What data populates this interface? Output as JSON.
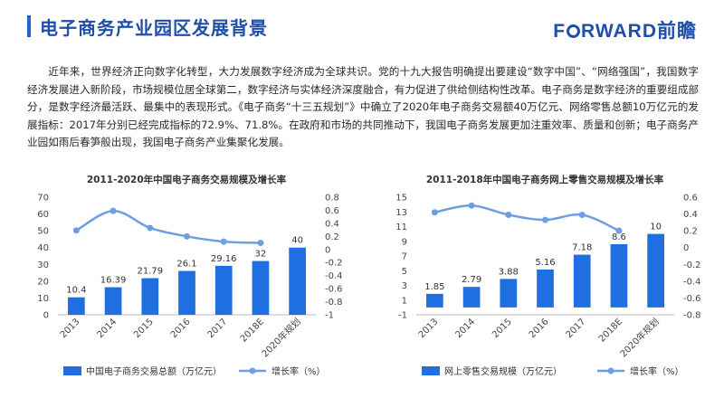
{
  "page": {
    "title": "电子商务产业园区发展背景",
    "logo": {
      "part1": "F",
      "part2": "RWARD前瞻"
    },
    "intro": "近年来，世界经济正向数字化转型，大力发展数字经济成为全球共识。党的十九大报告明确提出要建设“数字中国”、“网络强国”，我国数字经济发展进入新阶段，市场规模位居全球第二，数字经济与实体经济深度融合，有力促进了供给侧结构性改革。电子商务是数字经济的重要组成部分，是数字经济最活跃、最集中的表现形式。《电子商务“十三五规划”》中确立了2020年电子商务交易额40万亿元、网络零售总额10万亿元的发展指标：2017年分别已经完成指标的72.9%、71.8%。在政府和市场的共同推动下，我国电子商务发展更加注重效率、质量和创新；电子商务产业园如雨后春笋般出现，我国电子商务产业集聚化发展。",
    "accent_color": "#1f64d6"
  },
  "chart_data": [
    {
      "type": "bar",
      "title": "2011-2020年中国电子商务交易规模及增长率",
      "categories": [
        "2013",
        "2014",
        "2015",
        "2016",
        "2017",
        "2018E",
        "2020年规划"
      ],
      "series": [
        {
          "name": "中国电子商务交易总额（万亿元）",
          "type": "bar",
          "axis": "left",
          "color": "#1f6fe0",
          "values": [
            10.4,
            16.39,
            21.79,
            26.1,
            29.16,
            32,
            40
          ],
          "labels": [
            "10.4",
            "16.39",
            "21.79",
            "26.1",
            "29.16",
            "32",
            "40"
          ]
        },
        {
          "name": "增长率（%）",
          "type": "line",
          "axis": "right",
          "color": "#6f9ee0",
          "values": [
            0.29,
            0.59,
            0.33,
            0.2,
            0.12,
            0.1,
            null
          ]
        }
      ],
      "ylim": [
        0,
        70
      ],
      "yticks": [
        0,
        10,
        20,
        30,
        40,
        50,
        60,
        70
      ],
      "y2lim": [
        -1,
        0.8
      ],
      "y2ticks": [
        -1,
        -0.8,
        -0.6,
        -0.4,
        -0.2,
        0,
        0.2,
        0.4,
        0.6,
        0.8
      ],
      "legend_position": "bottom"
    },
    {
      "type": "bar",
      "title": "2011-2018年中国电子商务网上零售交易规模及增长率",
      "categories": [
        "2013",
        "2014",
        "2015",
        "2016",
        "2017",
        "2018E",
        "2020年规划"
      ],
      "series": [
        {
          "name": "网上零售交易规模（万亿元）",
          "type": "bar",
          "axis": "left",
          "color": "#1f6fe0",
          "values": [
            1.85,
            2.79,
            3.88,
            5.16,
            7.18,
            8.6,
            10
          ],
          "labels": [
            "1.85",
            "2.79",
            "3.88",
            "5.16",
            "7.18",
            "8.6",
            "10"
          ]
        },
        {
          "name": "增长率（%）",
          "type": "line",
          "axis": "right",
          "color": "#6f9ee0",
          "values": [
            0.42,
            0.5,
            0.39,
            0.33,
            0.39,
            0.2,
            null
          ]
        }
      ],
      "ylim": [
        -1,
        15
      ],
      "yticks": [
        -1,
        1,
        3,
        5,
        7,
        9,
        11,
        13,
        15
      ],
      "y2lim": [
        -0.8,
        0.6
      ],
      "y2ticks": [
        -0.8,
        -0.6,
        -0.4,
        -0.2,
        0,
        0.2,
        0.4,
        0.6
      ],
      "legend_position": "bottom"
    }
  ]
}
